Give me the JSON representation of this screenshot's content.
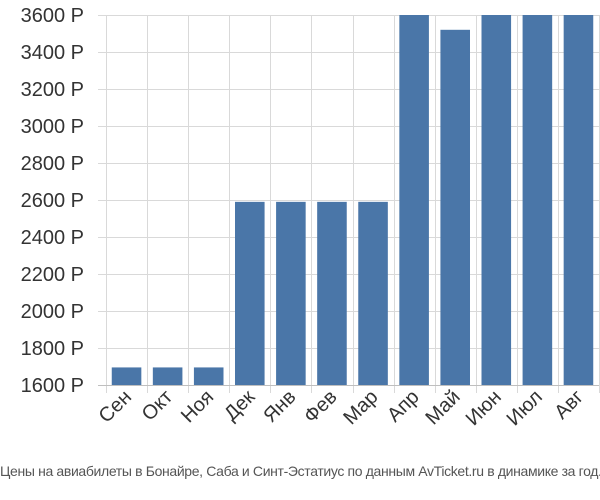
{
  "chart_data": {
    "type": "bar",
    "categories": [
      "Сен",
      "Окт",
      "Ноя",
      "Дек",
      "Янв",
      "Фев",
      "Мар",
      "Апр",
      "Май",
      "Июн",
      "Июл",
      "Авг"
    ],
    "values": [
      1695,
      1695,
      1695,
      2590,
      2590,
      2590,
      2590,
      3600,
      3520,
      3600,
      3600,
      3600
    ],
    "ylim": [
      1600,
      3600
    ],
    "yticks": [
      1600,
      1800,
      2000,
      2200,
      2400,
      2600,
      2800,
      3000,
      3200,
      3400,
      3600
    ],
    "ytick_labels": [
      "1600 Р",
      "1800 Р",
      "2000 Р",
      "2200 Р",
      "2400 Р",
      "2600 Р",
      "2800 Р",
      "3000 Р",
      "3200 Р",
      "3400 Р",
      "3600 Р"
    ],
    "grid": true,
    "bar_color": "#4a76a8",
    "grid_color": "#d9d9d9",
    "title": "",
    "xlabel": "",
    "ylabel": ""
  },
  "caption": "Цены на авиабилеты в Бонайре, Саба и Синт-Эстатиус по данным AvTicket.ru в динамике за год."
}
